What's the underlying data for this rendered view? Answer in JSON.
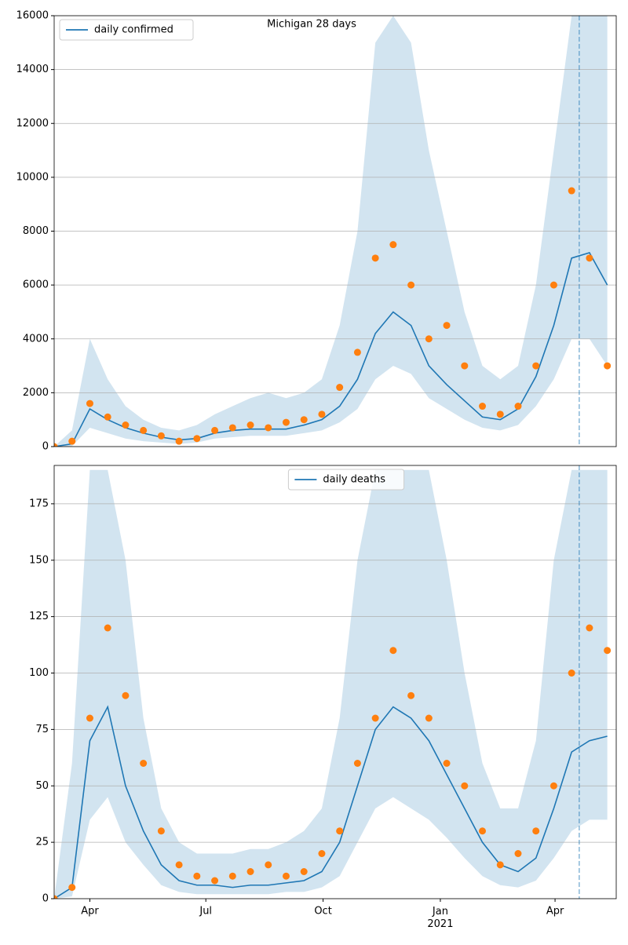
{
  "chart_data": [
    {
      "type": "line",
      "title": "Michigan 28 days",
      "x": [
        3,
        17,
        31,
        45,
        59,
        73,
        87,
        101,
        115,
        129,
        143,
        157,
        171,
        185,
        199,
        213,
        227,
        241,
        255,
        269,
        283,
        297,
        311,
        325,
        339,
        353,
        367,
        381,
        395,
        409,
        423,
        437
      ],
      "xlim": [
        3,
        444
      ],
      "ylim": [
        0,
        16000
      ],
      "yticks": [
        0,
        2000,
        4000,
        6000,
        8000,
        10000,
        12000,
        14000,
        16000
      ],
      "grid": true,
      "legend": "upper left",
      "vline": 415,
      "series": [
        {
          "name": "daily confirmed",
          "color": "#1f77b4",
          "values": [
            0,
            100,
            1400,
            1000,
            700,
            500,
            350,
            250,
            300,
            500,
            600,
            650,
            650,
            650,
            800,
            1000,
            1500,
            2500,
            4200,
            5000,
            4500,
            3000,
            2300,
            1700,
            1100,
            1000,
            1400,
            2600,
            4500,
            7000,
            7200,
            6000
          ]
        }
      ],
      "observed": {
        "color": "#ff7f0e",
        "values": [
          0,
          200,
          1600,
          1100,
          800,
          600,
          400,
          200,
          300,
          600,
          700,
          800,
          700,
          900,
          1000,
          1200,
          2200,
          3500,
          7000,
          7500,
          6000,
          4000,
          4500,
          3000,
          1500,
          1200,
          1500,
          3000,
          6000,
          9500,
          7000,
          3000
        ]
      },
      "band": {
        "color": "#1f77b4",
        "lower": [
          0,
          20,
          700,
          500,
          300,
          200,
          150,
          100,
          150,
          300,
          350,
          400,
          400,
          400,
          500,
          600,
          900,
          1400,
          2500,
          3000,
          2700,
          1800,
          1400,
          1000,
          700,
          600,
          800,
          1500,
          2500,
          4000,
          4000,
          3000
        ],
        "upper": [
          0,
          600,
          4000,
          2500,
          1500,
          1000,
          700,
          600,
          800,
          1200,
          1500,
          1800,
          2000,
          1800,
          2000,
          2500,
          4500,
          8000,
          15000,
          16000,
          15000,
          11000,
          8000,
          5000,
          3000,
          2500,
          3000,
          6000,
          11000,
          16000,
          16000,
          16000
        ]
      }
    },
    {
      "type": "line",
      "x": [
        3,
        17,
        31,
        45,
        59,
        73,
        87,
        101,
        115,
        129,
        143,
        157,
        171,
        185,
        199,
        213,
        227,
        241,
        255,
        269,
        283,
        297,
        311,
        325,
        339,
        353,
        367,
        381,
        395,
        409,
        423,
        437
      ],
      "xlim": [
        3,
        444
      ],
      "ylim": [
        0,
        192
      ],
      "yticks": [
        0,
        25,
        50,
        75,
        100,
        125,
        150,
        175
      ],
      "xticks": [
        {
          "value": 31,
          "label": "Apr"
        },
        {
          "value": 122,
          "label": "Jul"
        },
        {
          "value": 214,
          "label": "Oct"
        },
        {
          "value": 306,
          "label": "Jan\n2021"
        },
        {
          "value": 396,
          "label": "Apr"
        }
      ],
      "grid": true,
      "legend": "upper center",
      "vline": 415,
      "series": [
        {
          "name": "daily deaths",
          "color": "#1f77b4",
          "values": [
            0,
            5,
            70,
            85,
            50,
            30,
            15,
            8,
            6,
            6,
            5,
            6,
            6,
            7,
            8,
            12,
            25,
            50,
            75,
            85,
            80,
            70,
            55,
            40,
            25,
            15,
            12,
            18,
            40,
            65,
            70,
            72
          ]
        }
      ],
      "observed": {
        "color": "#ff7f0e",
        "values": [
          0,
          5,
          80,
          120,
          90,
          60,
          30,
          15,
          10,
          8,
          10,
          12,
          15,
          10,
          12,
          20,
          30,
          60,
          80,
          110,
          90,
          80,
          60,
          50,
          30,
          15,
          20,
          30,
          50,
          100,
          120,
          110
        ]
      },
      "band": {
        "color": "#1f77b4",
        "lower": [
          0,
          1,
          35,
          45,
          25,
          15,
          6,
          3,
          2,
          2,
          2,
          2,
          2,
          3,
          3,
          5,
          10,
          25,
          40,
          45,
          40,
          35,
          27,
          18,
          10,
          6,
          5,
          8,
          18,
          30,
          35,
          35
        ],
        "upper": [
          0,
          60,
          190,
          190,
          150,
          80,
          40,
          25,
          20,
          20,
          20,
          22,
          22,
          25,
          30,
          40,
          80,
          150,
          190,
          190,
          190,
          190,
          150,
          100,
          60,
          40,
          40,
          70,
          150,
          190,
          190,
          190
        ]
      }
    }
  ]
}
